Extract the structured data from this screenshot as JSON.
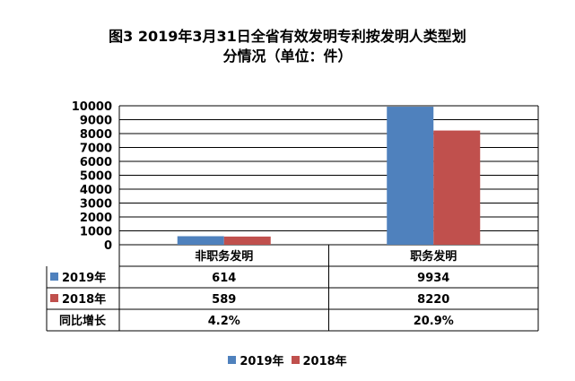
{
  "title_line1": "图3  2019年3月31日全省有效发明专利按发明人类型划",
  "title_line2": "分情况（单位：件）",
  "colors": {
    "s2019": "#4F81BD",
    "s2018": "#C0504D"
  },
  "chart_data": {
    "type": "bar",
    "categories": [
      "非职务发明",
      "职务发明"
    ],
    "series": [
      {
        "name": "2019年",
        "values": [
          614,
          9934
        ]
      },
      {
        "name": "2018年",
        "values": [
          589,
          8220
        ]
      }
    ],
    "growth_label": "同比增长",
    "growth": [
      "4.2%",
      "20.9%"
    ],
    "yticks": [
      "0",
      "1000",
      "2000",
      "3000",
      "4000",
      "5000",
      "6000",
      "7000",
      "8000",
      "9000",
      "10000"
    ],
    "ylim": [
      0,
      10000
    ],
    "legend": "bottom",
    "grid": true
  }
}
